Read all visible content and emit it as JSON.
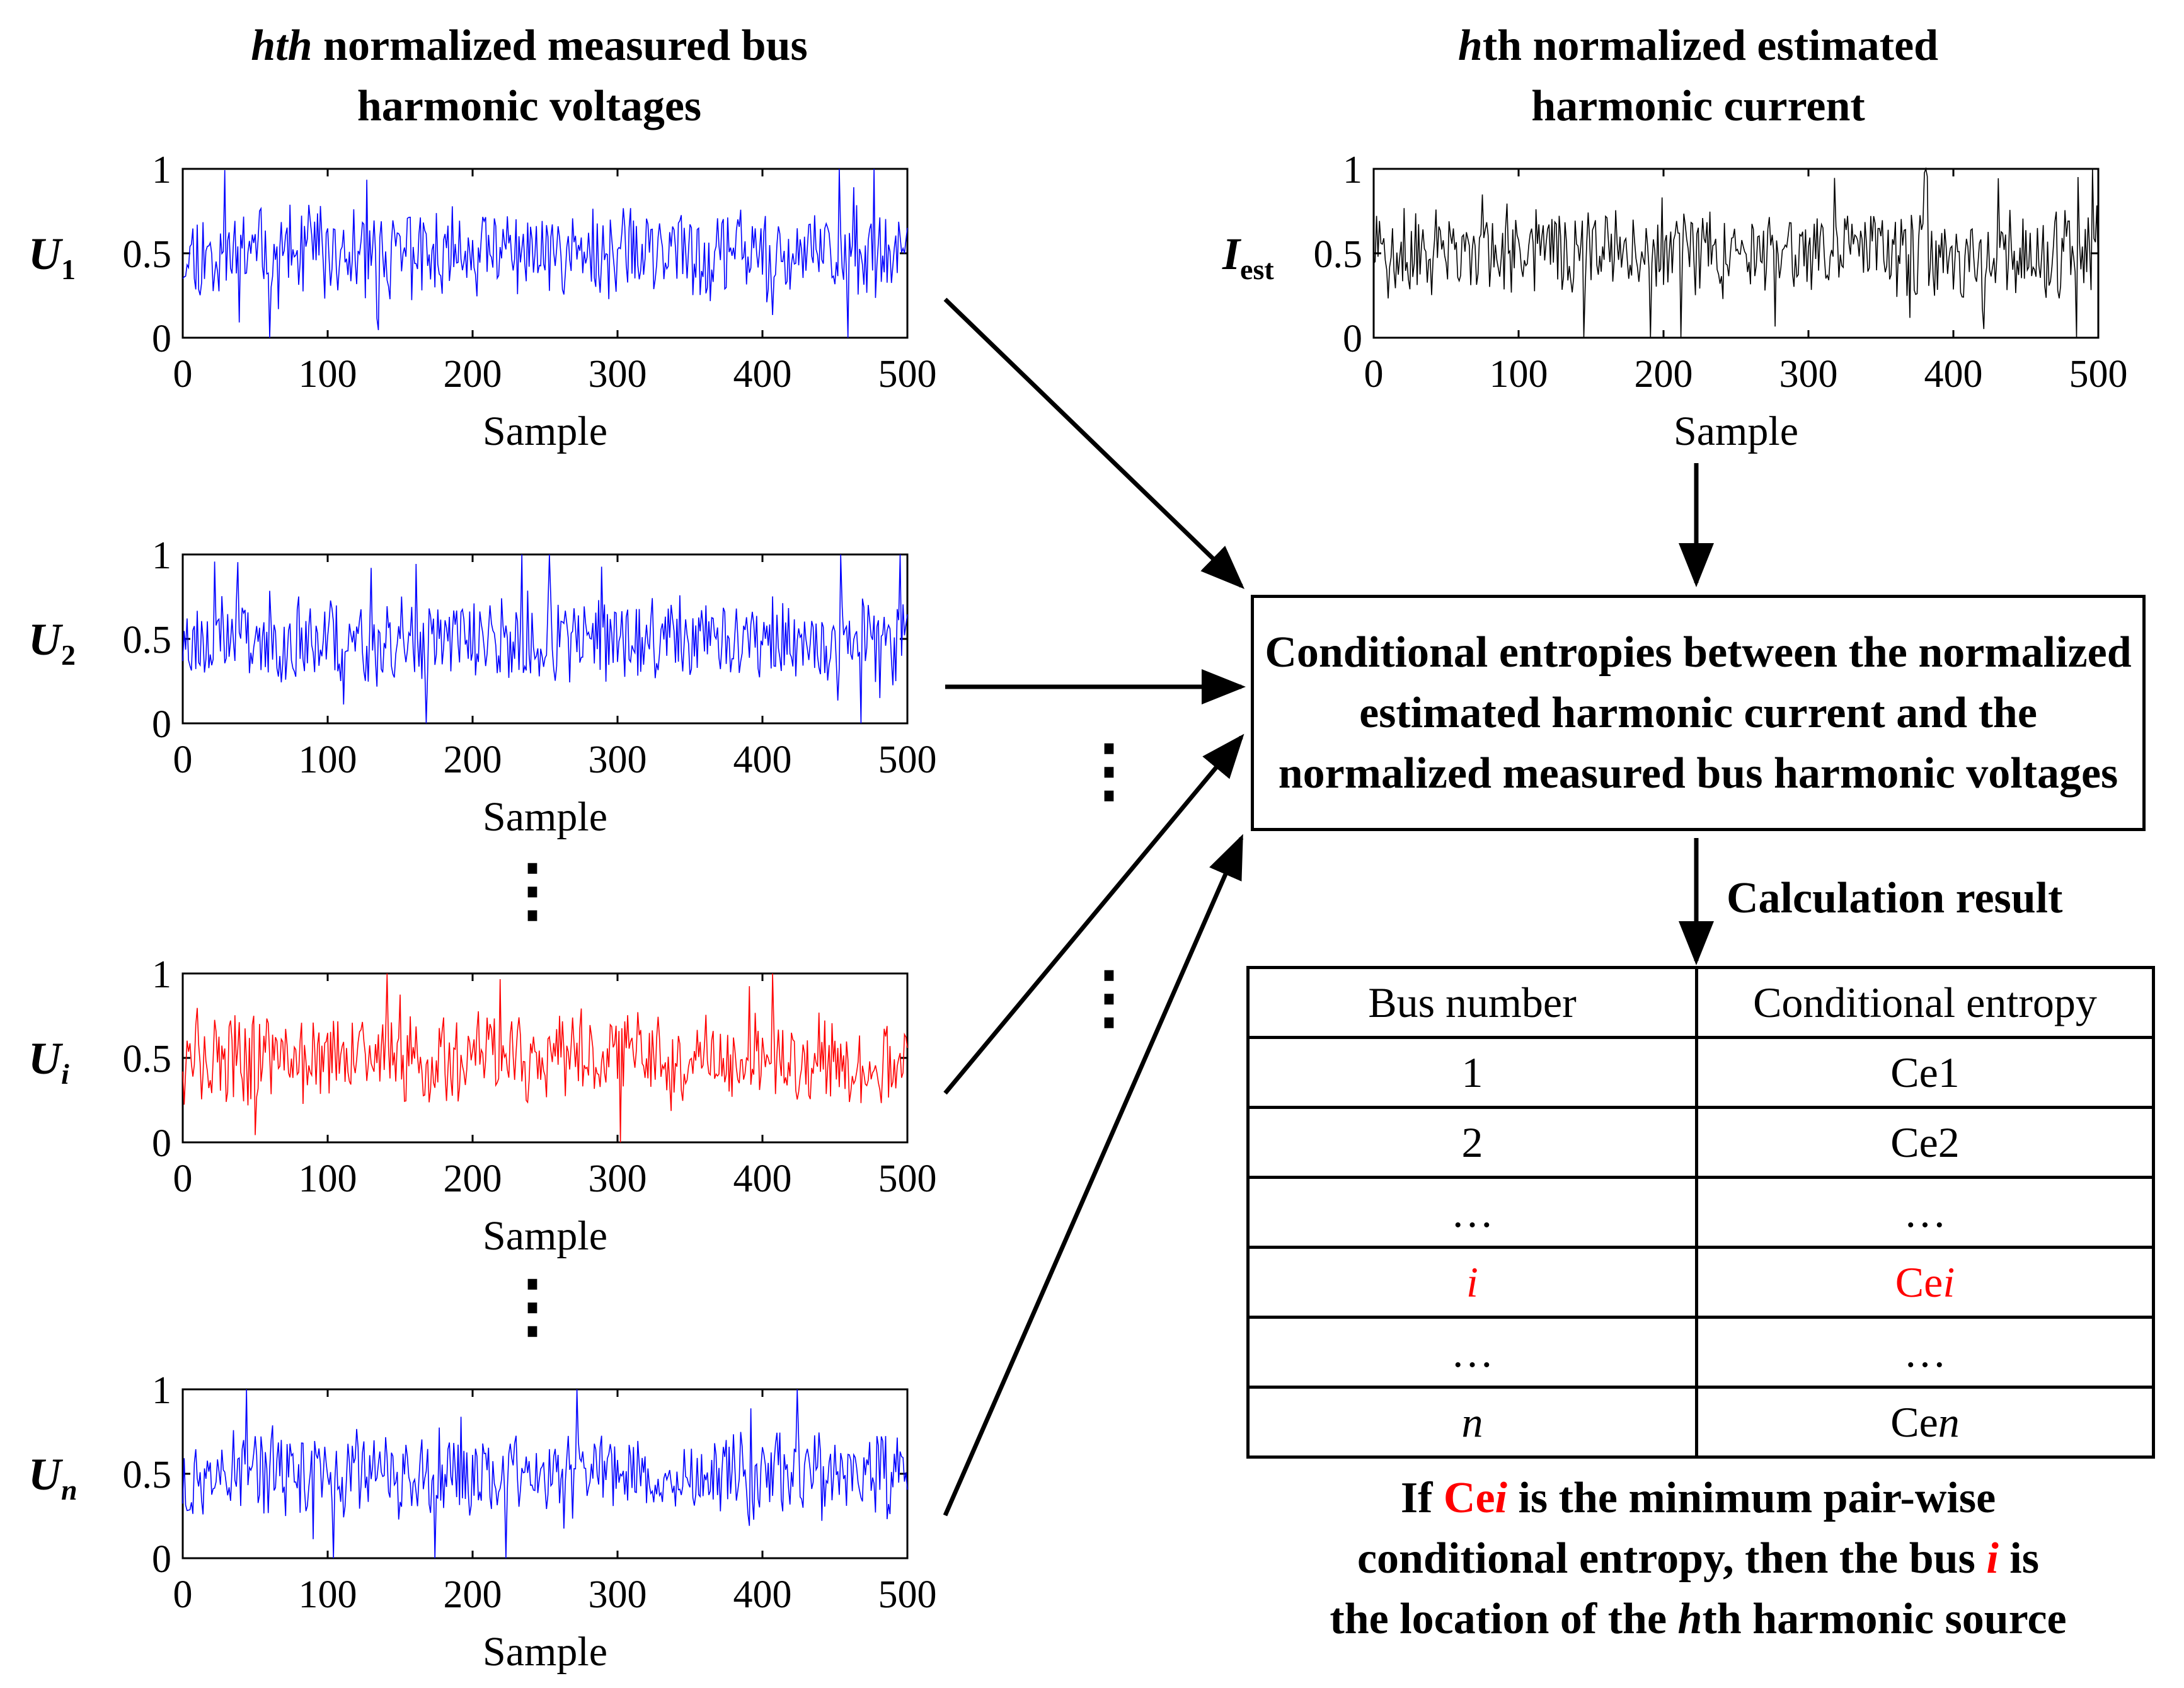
{
  "left_title": {
    "line1_italic": "hth",
    "line1_rest": " normalized measured bus",
    "line2": "harmonic voltages"
  },
  "right_title": {
    "line1_italic": "h",
    "line1_rest": "th normalized estimated",
    "line2": "harmonic current"
  },
  "plots": [
    {
      "id": "u1",
      "ylabel_main": "U",
      "ylabel_sub": "1",
      "sub_italic": false,
      "color": "#0000ff",
      "seed": 11
    },
    {
      "id": "u2",
      "ylabel_main": "U",
      "ylabel_sub": "2",
      "sub_italic": false,
      "color": "#0000ff",
      "seed": 23
    },
    {
      "id": "ui",
      "ylabel_main": "U",
      "ylabel_sub": "i",
      "sub_italic": true,
      "color": "#ff0000",
      "seed": 37
    },
    {
      "id": "un",
      "ylabel_main": "U",
      "ylabel_sub": "n",
      "sub_italic": true,
      "color": "#0000ff",
      "seed": 53
    },
    {
      "id": "iest",
      "ylabel_main": "I",
      "ylabel_sub": "est",
      "sub_italic": false,
      "color": "#000000",
      "seed": 71
    }
  ],
  "axis": {
    "xticks": [
      "0",
      "100",
      "200",
      "300",
      "400",
      "500"
    ],
    "yticks": [
      "0",
      "0.5",
      "1"
    ],
    "xlabel": "Sample",
    "xlim": [
      0,
      500
    ],
    "ylim": [
      0,
      1
    ]
  },
  "vdots": "⋮",
  "box_text": "Conditional entropies  between the normalized estimated harmonic current and the normalized measured bus harmonic voltages",
  "calc_label": "Calculation result",
  "table": {
    "headers": [
      "Bus number",
      "Conditional entropy"
    ],
    "rows": [
      {
        "bus": "1",
        "ce_prefix": "Ce",
        "ce_suffix": "1",
        "highlight": false,
        "italic": false
      },
      {
        "bus": "2",
        "ce_prefix": "Ce",
        "ce_suffix": "2",
        "highlight": false,
        "italic": false
      },
      {
        "bus": "…",
        "ce_prefix": "…",
        "ce_suffix": "",
        "highlight": false,
        "italic": false
      },
      {
        "bus": "i",
        "ce_prefix": "Ce",
        "ce_suffix": "i",
        "highlight": true,
        "italic": true
      },
      {
        "bus": "…",
        "ce_prefix": "…",
        "ce_suffix": "",
        "highlight": false,
        "italic": false
      },
      {
        "bus": "n",
        "ce_prefix": "Ce",
        "ce_suffix": "n",
        "highlight": false,
        "italic": true
      }
    ]
  },
  "conclusion": {
    "l1_a": "If ",
    "l1_red_a": "Ce",
    "l1_red_b": "i",
    "l1_b": " is the minimum pair-wise",
    "l2_a": "conditional entropy, then the bus ",
    "l2_red": "i",
    "l2_b": " is",
    "l3_a": "the location of the ",
    "l3_italic": "h",
    "l3_b": "th harmonic source"
  }
}
